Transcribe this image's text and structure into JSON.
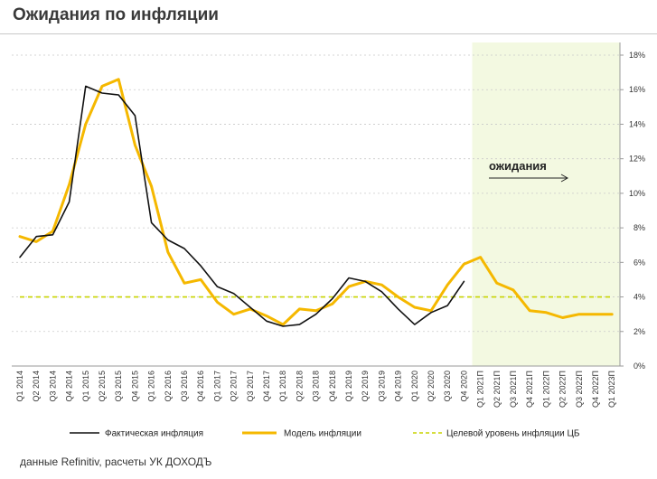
{
  "page": {
    "title": "Ожидания по инфляции",
    "footer": "данные Refinitiv, расчеты УК ДОХОДЪ"
  },
  "chart_data": {
    "type": "line",
    "title": "Ожидания по инфляции",
    "x": [
      "Q1 2014",
      "Q2 2014",
      "Q3 2014",
      "Q4 2014",
      "Q1 2015",
      "Q2 2015",
      "Q3 2015",
      "Q4 2015",
      "Q1 2016",
      "Q2 2016",
      "Q3 2016",
      "Q4 2016",
      "Q1 2017",
      "Q2 2017",
      "Q3 2017",
      "Q4 2017",
      "Q1 2018",
      "Q2 2018",
      "Q3 2018",
      "Q4 2018",
      "Q1 2019",
      "Q2 2019",
      "Q3 2019",
      "Q4 2019",
      "Q1 2020",
      "Q2 2020",
      "Q3 2020",
      "Q4 2020",
      "Q1 2021П",
      "Q2 2021П",
      "Q3 2021П",
      "Q4 2021П",
      "Q1 2022П",
      "Q2 2022П",
      "Q3 2022П",
      "Q4 2022П",
      "Q1 2023П"
    ],
    "series": [
      {
        "name": "Фактическая инфляция",
        "color": "#111111",
        "style": "solid",
        "values": [
          6.3,
          7.5,
          7.6,
          9.5,
          16.2,
          15.8,
          15.7,
          14.5,
          8.3,
          7.3,
          6.8,
          5.8,
          4.6,
          4.2,
          3.4,
          2.6,
          2.3,
          2.4,
          3.0,
          3.9,
          5.1,
          4.9,
          4.3,
          3.3,
          2.4,
          3.1,
          3.5,
          4.9,
          null,
          null,
          null,
          null,
          null,
          null,
          null,
          null,
          null
        ]
      },
      {
        "name": "Модель инфляции",
        "color": "#f5b800",
        "style": "solid",
        "values": [
          7.5,
          7.2,
          7.8,
          10.5,
          14.0,
          16.2,
          16.6,
          12.8,
          10.4,
          6.6,
          4.8,
          5.0,
          3.7,
          3.0,
          3.3,
          2.9,
          2.4,
          3.3,
          3.2,
          3.6,
          4.6,
          4.9,
          4.7,
          4.0,
          3.4,
          3.2,
          4.7,
          5.9,
          6.3,
          4.8,
          4.4,
          3.2,
          3.1,
          2.8,
          3.0,
          3.0,
          3.0
        ]
      },
      {
        "name": "Целевой уровень инфляции ЦБ",
        "color": "#c8d400",
        "style": "dashed",
        "values": [
          4,
          4,
          4,
          4,
          4,
          4,
          4,
          4,
          4,
          4,
          4,
          4,
          4,
          4,
          4,
          4,
          4,
          4,
          4,
          4,
          4,
          4,
          4,
          4,
          4,
          4,
          4,
          4,
          4,
          4,
          4,
          4,
          4,
          4,
          4,
          4,
          4
        ]
      }
    ],
    "y_ticks": [
      "0%",
      "2%",
      "4%",
      "6%",
      "8%",
      "10%",
      "12%",
      "14%",
      "16%",
      "18%"
    ],
    "ylim": [
      0,
      18
    ],
    "y_axis_side": "right",
    "grid": "horizontal dashed",
    "forecast_region": {
      "from": "Q1 2021П",
      "to": "Q1 2023П",
      "color": "#f3f9e1"
    },
    "annotation": "ожидания",
    "legend_placement": "bottom"
  }
}
